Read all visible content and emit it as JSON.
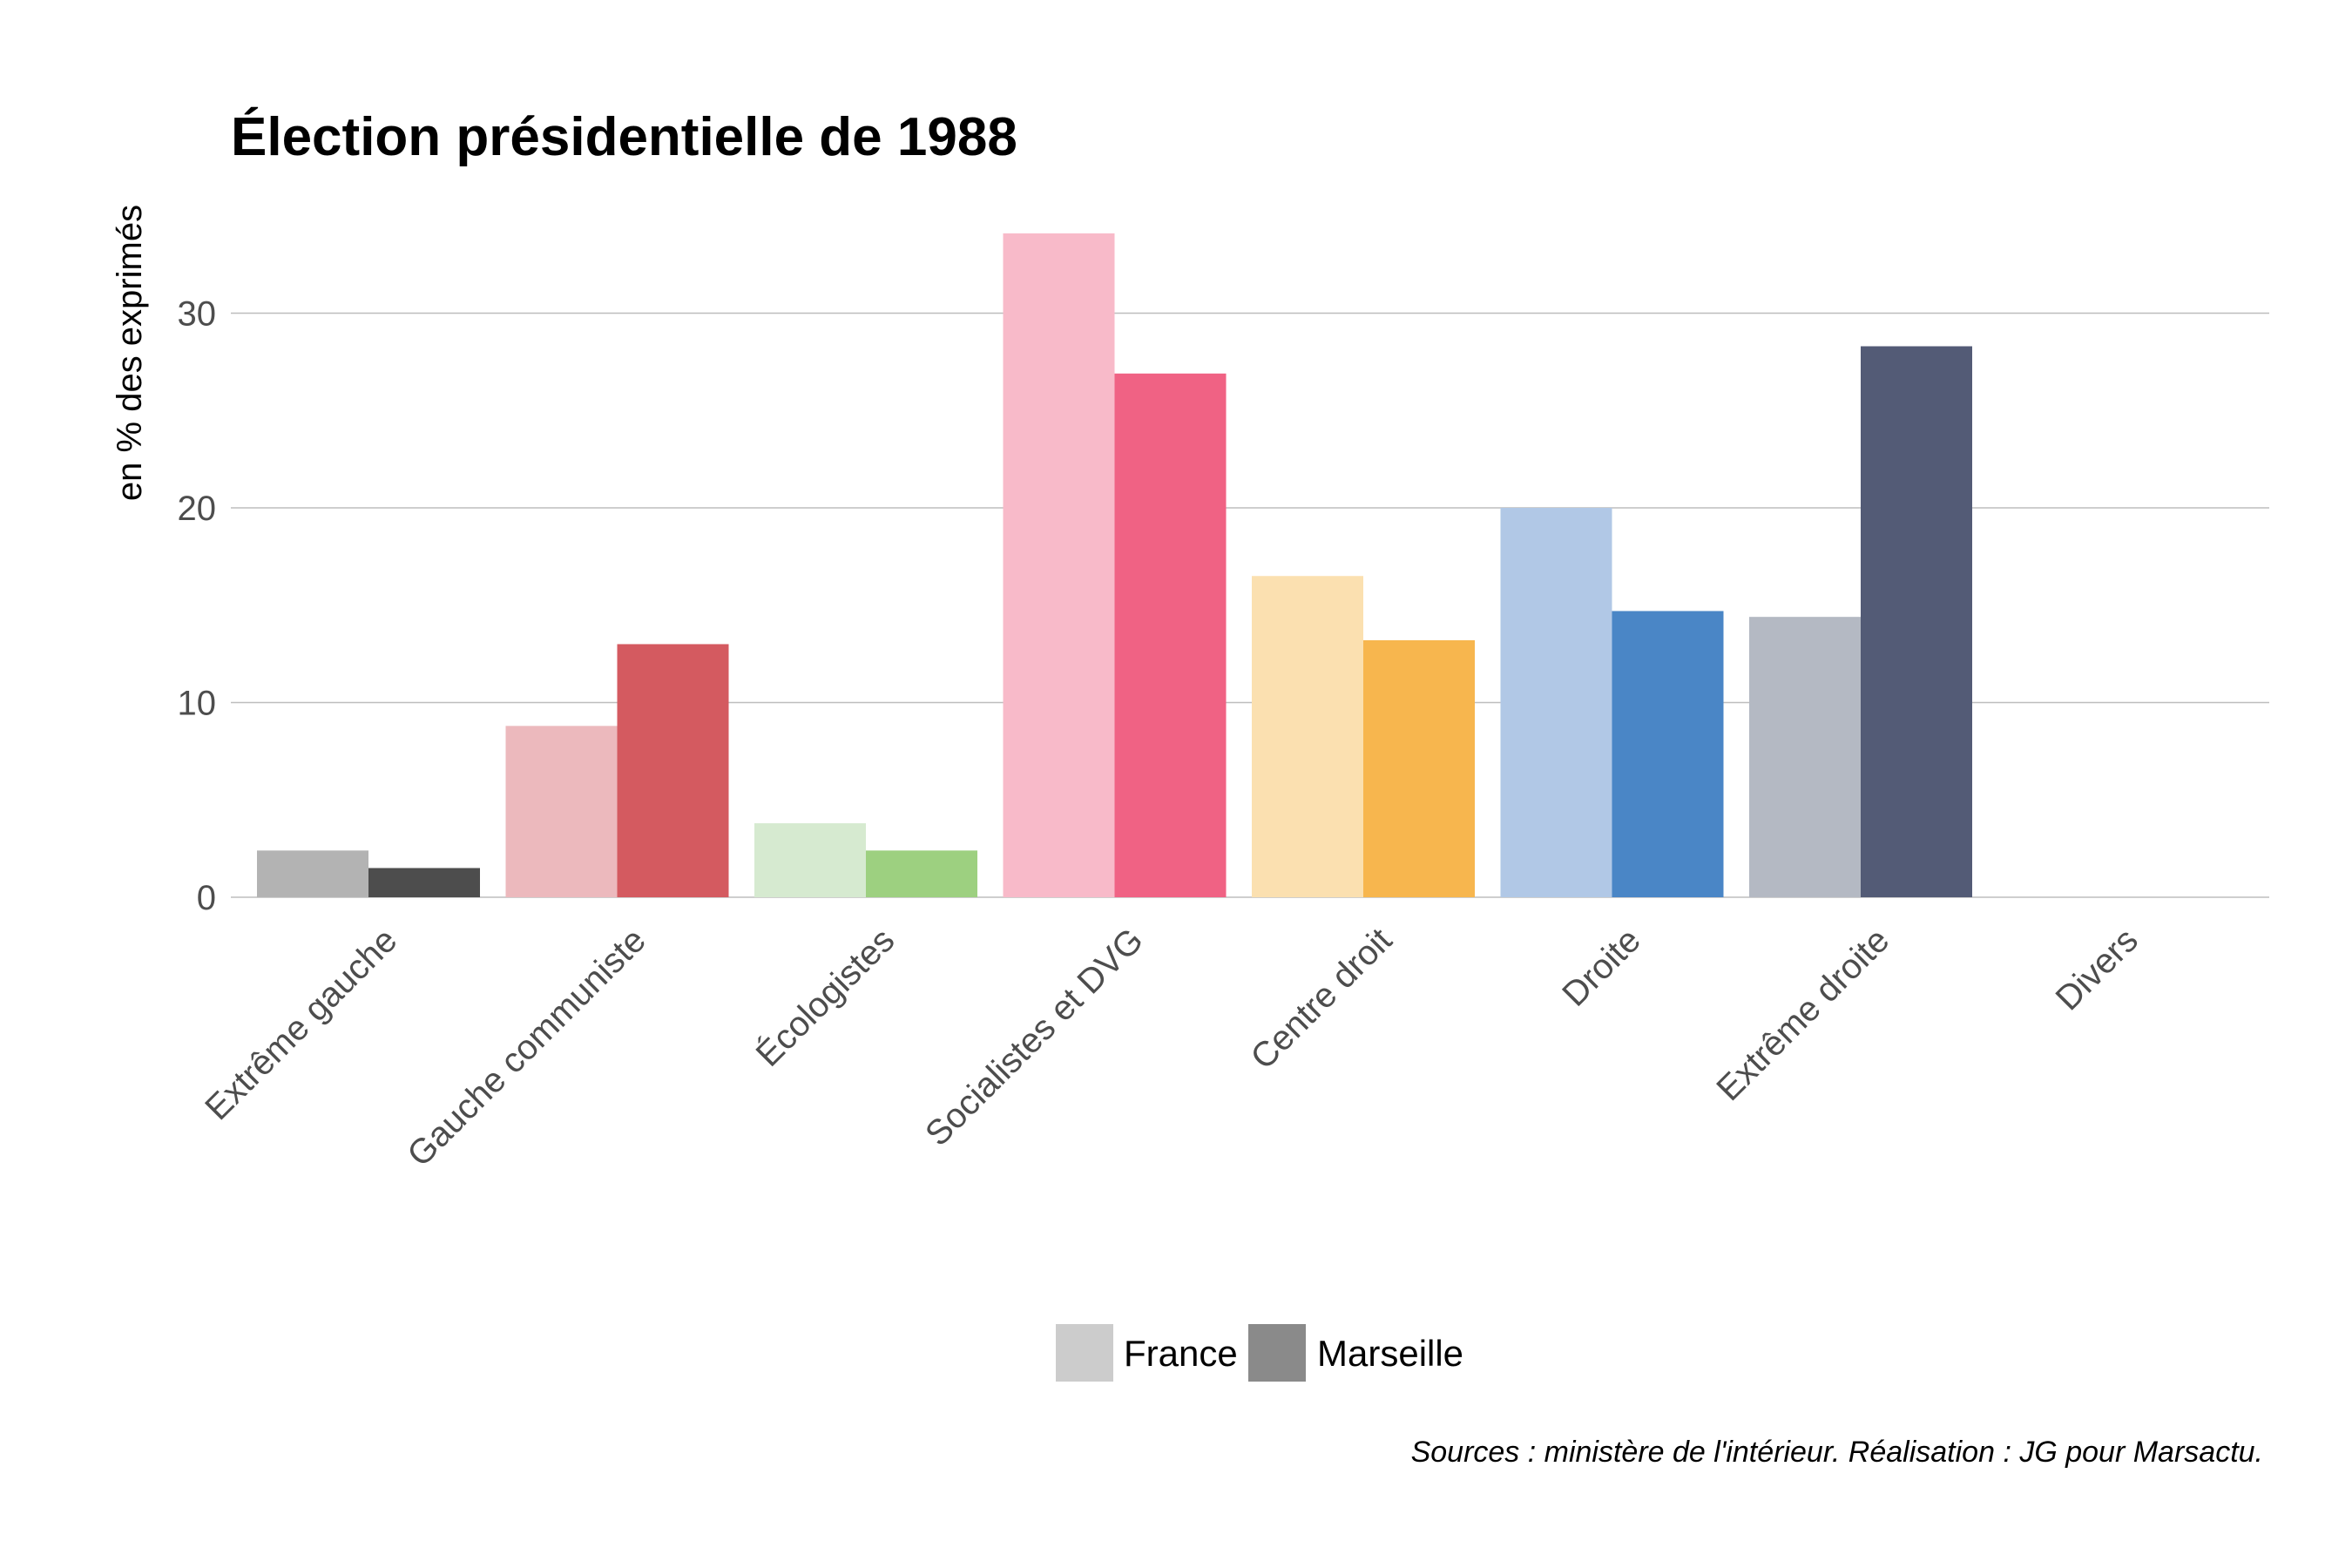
{
  "chart_data": {
    "type": "bar",
    "title": "Élection présidentielle de 1988",
    "ylabel": "en % des exprimés",
    "xlabel": "",
    "ylim": [
      0,
      36
    ],
    "yticks": [
      0,
      10,
      20,
      30
    ],
    "grid": true,
    "legend_position": "bottom",
    "caption": "Sources : ministère de l'intérieur. Réalisation : JG pour Marsactu.",
    "categories": [
      "Extrême gauche",
      "Gauche communiste",
      "Écologistes",
      "Socialistes et DVG",
      "Centre droit",
      "Droite",
      "Extrême droite",
      "Divers"
    ],
    "series": [
      {
        "name": "France",
        "values": [
          2.4,
          8.8,
          3.8,
          34.1,
          16.5,
          20.0,
          14.4,
          0
        ]
      },
      {
        "name": "Marseille",
        "values": [
          1.5,
          13.0,
          2.4,
          26.9,
          13.2,
          14.7,
          28.3,
          0
        ]
      }
    ],
    "category_colors": {
      "France": [
        "#b3b3b3",
        "#ecb9bd",
        "#d6ead0",
        "#f8bac9",
        "#fbe0b0",
        "#b1c8e6",
        "#b4b9c3",
        "#d9d9d9"
      ],
      "Marseille": [
        "#4d4d4d",
        "#d45a60",
        "#9dd080",
        "#f06284",
        "#f7b64e",
        "#4a86c6",
        "#535b76",
        "#8a8a8a"
      ]
    },
    "legend_colors": {
      "France": "#cccccc",
      "Marseille": "#8a8a8a"
    }
  }
}
